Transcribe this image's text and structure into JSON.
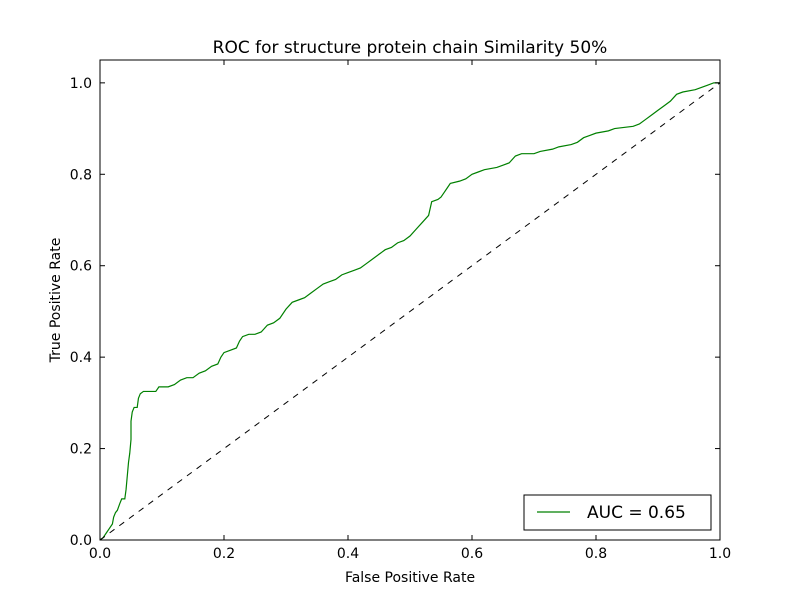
{
  "chart_data": {
    "type": "line",
    "title": "ROC for structure protein chain Similarity 50%",
    "xlabel": "False Positive Rate",
    "ylabel": "True Positive Rate",
    "xlim": [
      0.0,
      1.0
    ],
    "ylim": [
      0.0,
      1.05
    ],
    "x_ticks": [
      "0.0",
      "0.2",
      "0.4",
      "0.6",
      "0.8",
      "1.0"
    ],
    "y_ticks": [
      "0.0",
      "0.2",
      "0.4",
      "0.6",
      "0.8",
      "1.0"
    ],
    "grid": false,
    "legend": {
      "position": "lower-right",
      "entries": [
        "AUC = 0.65"
      ]
    },
    "series": [
      {
        "name": "AUC = 0.65",
        "color": "#008000",
        "style": "solid",
        "points": [
          [
            0.0,
            0.0
          ],
          [
            0.005,
            0.005
          ],
          [
            0.01,
            0.015
          ],
          [
            0.015,
            0.025
          ],
          [
            0.02,
            0.035
          ],
          [
            0.022,
            0.05
          ],
          [
            0.025,
            0.06
          ],
          [
            0.028,
            0.065
          ],
          [
            0.032,
            0.08
          ],
          [
            0.035,
            0.09
          ],
          [
            0.04,
            0.09
          ],
          [
            0.042,
            0.11
          ],
          [
            0.044,
            0.14
          ],
          [
            0.046,
            0.17
          ],
          [
            0.048,
            0.19
          ],
          [
            0.05,
            0.22
          ],
          [
            0.05,
            0.26
          ],
          [
            0.052,
            0.28
          ],
          [
            0.055,
            0.29
          ],
          [
            0.06,
            0.29
          ],
          [
            0.062,
            0.31
          ],
          [
            0.065,
            0.32
          ],
          [
            0.07,
            0.325
          ],
          [
            0.09,
            0.325
          ],
          [
            0.095,
            0.335
          ],
          [
            0.11,
            0.335
          ],
          [
            0.12,
            0.34
          ],
          [
            0.13,
            0.35
          ],
          [
            0.14,
            0.355
          ],
          [
            0.15,
            0.355
          ],
          [
            0.16,
            0.365
          ],
          [
            0.17,
            0.37
          ],
          [
            0.18,
            0.38
          ],
          [
            0.19,
            0.385
          ],
          [
            0.195,
            0.4
          ],
          [
            0.2,
            0.41
          ],
          [
            0.21,
            0.415
          ],
          [
            0.22,
            0.42
          ],
          [
            0.225,
            0.435
          ],
          [
            0.23,
            0.445
          ],
          [
            0.24,
            0.45
          ],
          [
            0.25,
            0.45
          ],
          [
            0.26,
            0.455
          ],
          [
            0.27,
            0.47
          ],
          [
            0.28,
            0.475
          ],
          [
            0.29,
            0.485
          ],
          [
            0.3,
            0.505
          ],
          [
            0.31,
            0.52
          ],
          [
            0.32,
            0.525
          ],
          [
            0.33,
            0.53
          ],
          [
            0.34,
            0.54
          ],
          [
            0.35,
            0.55
          ],
          [
            0.36,
            0.56
          ],
          [
            0.37,
            0.565
          ],
          [
            0.38,
            0.57
          ],
          [
            0.39,
            0.58
          ],
          [
            0.4,
            0.585
          ],
          [
            0.41,
            0.59
          ],
          [
            0.42,
            0.595
          ],
          [
            0.43,
            0.605
          ],
          [
            0.44,
            0.615
          ],
          [
            0.45,
            0.625
          ],
          [
            0.46,
            0.635
          ],
          [
            0.47,
            0.64
          ],
          [
            0.48,
            0.65
          ],
          [
            0.49,
            0.655
          ],
          [
            0.5,
            0.665
          ],
          [
            0.51,
            0.68
          ],
          [
            0.52,
            0.695
          ],
          [
            0.53,
            0.71
          ],
          [
            0.535,
            0.74
          ],
          [
            0.545,
            0.745
          ],
          [
            0.55,
            0.75
          ],
          [
            0.555,
            0.76
          ],
          [
            0.56,
            0.77
          ],
          [
            0.565,
            0.78
          ],
          [
            0.58,
            0.785
          ],
          [
            0.59,
            0.79
          ],
          [
            0.6,
            0.8
          ],
          [
            0.61,
            0.805
          ],
          [
            0.62,
            0.81
          ],
          [
            0.64,
            0.815
          ],
          [
            0.65,
            0.82
          ],
          [
            0.66,
            0.825
          ],
          [
            0.67,
            0.84
          ],
          [
            0.68,
            0.845
          ],
          [
            0.7,
            0.845
          ],
          [
            0.71,
            0.85
          ],
          [
            0.73,
            0.855
          ],
          [
            0.74,
            0.86
          ],
          [
            0.76,
            0.865
          ],
          [
            0.77,
            0.87
          ],
          [
            0.78,
            0.88
          ],
          [
            0.79,
            0.885
          ],
          [
            0.8,
            0.89
          ],
          [
            0.82,
            0.895
          ],
          [
            0.83,
            0.9
          ],
          [
            0.86,
            0.905
          ],
          [
            0.87,
            0.91
          ],
          [
            0.88,
            0.92
          ],
          [
            0.89,
            0.93
          ],
          [
            0.9,
            0.94
          ],
          [
            0.91,
            0.95
          ],
          [
            0.92,
            0.96
          ],
          [
            0.93,
            0.975
          ],
          [
            0.94,
            0.98
          ],
          [
            0.96,
            0.985
          ],
          [
            0.97,
            0.99
          ],
          [
            0.98,
            0.995
          ],
          [
            0.99,
            1.0
          ],
          [
            1.0,
            1.0
          ]
        ]
      },
      {
        "name": "",
        "color": "#000000",
        "style": "dashed",
        "points": [
          [
            0.0,
            0.0
          ],
          [
            1.0,
            1.0
          ]
        ]
      }
    ]
  }
}
